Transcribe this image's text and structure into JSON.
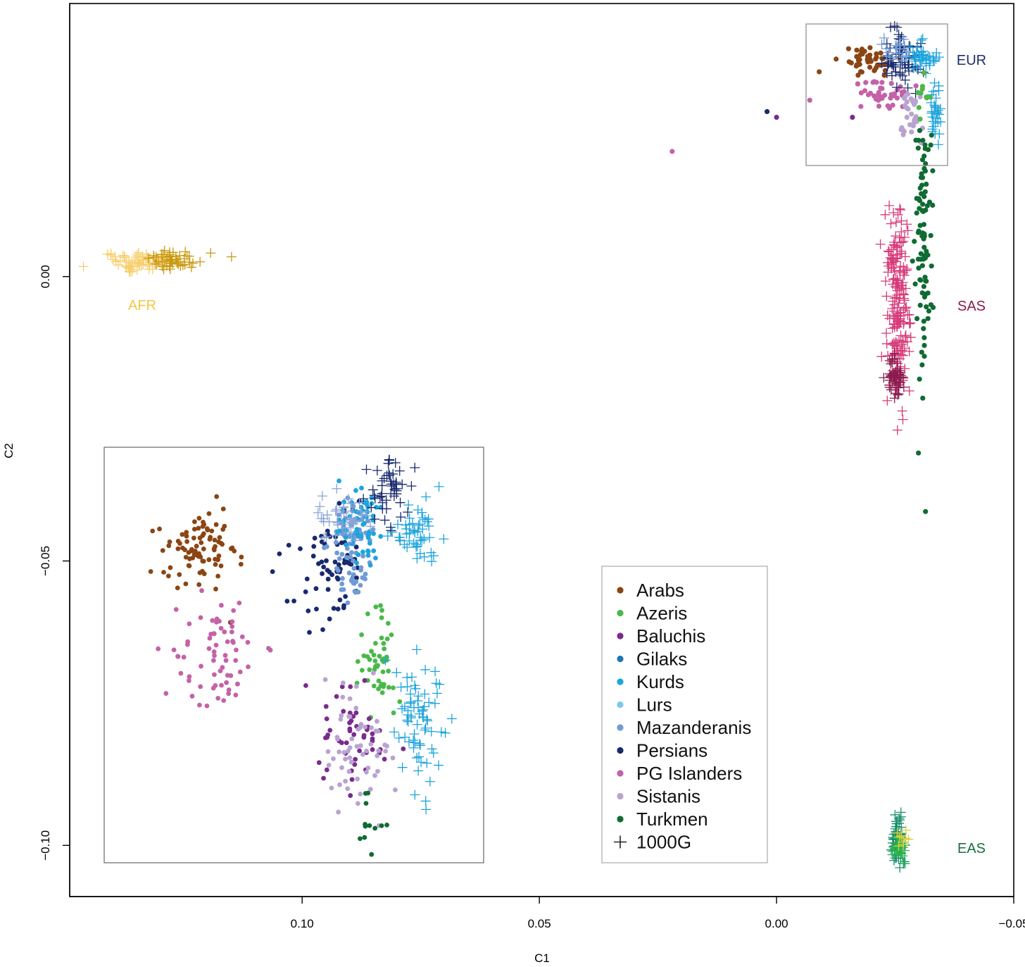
{
  "chart_data": {
    "type": "scatter",
    "title": "",
    "xlabel": "C1",
    "ylabel": "C2",
    "x_reversed": true,
    "xlim": [
      0.149,
      -0.05
    ],
    "ylim": [
      -0.109,
      0.048
    ],
    "x_ticks": [
      0.1,
      0.05,
      0.0,
      -0.05
    ],
    "x_tick_labels": [
      "0.10",
      "0.05",
      "0.00",
      "−0.05"
    ],
    "y_ticks": [
      0.0,
      -0.05,
      -0.1
    ],
    "y_tick_labels": [
      "0.00",
      "−0.05",
      "−0.10"
    ],
    "grid": false,
    "legend_position": "bottom-center",
    "region_labels": [
      {
        "text": "EUR",
        "color": "#1f2d6e"
      },
      {
        "text": "AFR",
        "color": "#f2c744"
      },
      {
        "text": "SAS",
        "color": "#8b1a4e"
      },
      {
        "text": "EAS",
        "color": "#1a6e3a"
      }
    ],
    "legend": [
      {
        "name": "Arabs",
        "color": "#8b4513",
        "marker": "dot"
      },
      {
        "name": "Azeris",
        "color": "#4bb849",
        "marker": "dot"
      },
      {
        "name": "Baluchis",
        "color": "#7b2a8e",
        "marker": "dot"
      },
      {
        "name": "Gilaks",
        "color": "#1f77b4",
        "marker": "dot"
      },
      {
        "name": "Kurds",
        "color": "#1ea4dc",
        "marker": "dot"
      },
      {
        "name": "Lurs",
        "color": "#7cc8f0",
        "marker": "dot"
      },
      {
        "name": "Mazanderanis",
        "color": "#6f9bd6",
        "marker": "dot"
      },
      {
        "name": "Persians",
        "color": "#18296e",
        "marker": "dot"
      },
      {
        "name": "PG Islanders",
        "color": "#c462a8",
        "marker": "dot"
      },
      {
        "name": "Sistanis",
        "color": "#b9a3d0",
        "marker": "dot"
      },
      {
        "name": "Turkmen",
        "color": "#0f6b32",
        "marker": "dot"
      },
      {
        "name": "1000G",
        "color": "#222222",
        "marker": "plus"
      }
    ],
    "clusters": [
      {
        "group": "AFR",
        "marker": "plus",
        "color": "#f7cf6e",
        "cx": 0.135,
        "cy": 0.0025,
        "sx": 0.004,
        "sy": 0.001,
        "n": 60
      },
      {
        "group": "AFR",
        "marker": "plus",
        "color": "#c9990f",
        "cx": 0.127,
        "cy": 0.003,
        "sx": 0.003,
        "sy": 0.001,
        "n": 50
      },
      {
        "group": "EUR",
        "marker": "dot",
        "color": "#8b4513",
        "cx": -0.0195,
        "cy": 0.038,
        "sx": 0.003,
        "sy": 0.0015,
        "n": 50
      },
      {
        "group": "EUR",
        "marker": "dot",
        "color": "#c462a8",
        "cx": -0.022,
        "cy": 0.032,
        "sx": 0.003,
        "sy": 0.0015,
        "n": 40
      },
      {
        "group": "EUR",
        "marker": "plus",
        "color": "#18296e",
        "cx": -0.0265,
        "cy": 0.038,
        "sx": 0.0018,
        "sy": 0.0025,
        "n": 60
      },
      {
        "group": "EUR",
        "marker": "plus",
        "color": "#1ea4dc",
        "cx": -0.0305,
        "cy": 0.0385,
        "sx": 0.0015,
        "sy": 0.0018,
        "n": 40
      },
      {
        "group": "EUR",
        "marker": "plus",
        "color": "#1ea4dc",
        "cx": -0.0335,
        "cy": 0.029,
        "sx": 0.0008,
        "sy": 0.0025,
        "n": 30
      },
      {
        "group": "EUR",
        "marker": "plus",
        "color": "#6f9bd6",
        "cx": -0.025,
        "cy": 0.04,
        "sx": 0.0012,
        "sy": 0.001,
        "n": 20
      },
      {
        "group": "EUR",
        "marker": "dot",
        "color": "#b9a3d0",
        "cx": -0.0285,
        "cy": 0.028,
        "sx": 0.0012,
        "sy": 0.0025,
        "n": 30
      },
      {
        "group": "EUR",
        "marker": "dot",
        "color": "#4bb849",
        "cx": -0.031,
        "cy": 0.032,
        "sx": 0.0008,
        "sy": 0.0015,
        "n": 10
      },
      {
        "group": "SAS",
        "marker": "plus",
        "color": "#d63b7a",
        "cx": -0.0255,
        "cy": -0.005,
        "sx": 0.0012,
        "sy": 0.008,
        "n": 180
      },
      {
        "group": "SAS",
        "marker": "plus",
        "color": "#8b1a4e",
        "cx": -0.025,
        "cy": -0.0175,
        "sx": 0.0008,
        "sy": 0.002,
        "n": 50
      },
      {
        "group": "SAS",
        "marker": "dot",
        "color": "#0f6b32",
        "cx": -0.031,
        "cy": 0.005,
        "sx": 0.0008,
        "sy": 0.012,
        "n": 90
      },
      {
        "group": "EAS",
        "marker": "plus",
        "color": "#1a8f6e",
        "cx": -0.0255,
        "cy": -0.099,
        "sx": 0.0007,
        "sy": 0.002,
        "n": 70
      },
      {
        "group": "EAS",
        "marker": "plus",
        "color": "#2ab24a",
        "cx": -0.026,
        "cy": -0.101,
        "sx": 0.0007,
        "sy": 0.001,
        "n": 25
      },
      {
        "group": "EAS",
        "marker": "plus",
        "color": "#d8d040",
        "cx": -0.0265,
        "cy": -0.0985,
        "sx": 0.0006,
        "sy": 0.001,
        "n": 10
      }
    ],
    "outliers": [
      {
        "x": -0.009,
        "y": 0.036,
        "color": "#8b4513"
      },
      {
        "x": 0.022,
        "y": 0.022,
        "color": "#c462a8"
      },
      {
        "x": 0.002,
        "y": 0.029,
        "color": "#18296e"
      },
      {
        "x": 0.0,
        "y": 0.028,
        "color": "#7b2a8e"
      },
      {
        "x": -0.007,
        "y": 0.031,
        "color": "#c462a8"
      },
      {
        "x": -0.016,
        "y": 0.028,
        "color": "#7b2a8e"
      }
    ],
    "inset": {
      "clusters": [
        {
          "marker": "dot",
          "color": "#8b4513",
          "cx": 0.25,
          "cy": 0.25,
          "sx": 0.05,
          "sy": 0.05,
          "n": 90
        },
        {
          "marker": "dot",
          "color": "#c462a8",
          "cx": 0.3,
          "cy": 0.5,
          "sx": 0.06,
          "sy": 0.07,
          "n": 70
        },
        {
          "marker": "dot",
          "color": "#18296e",
          "cx": 0.6,
          "cy": 0.28,
          "sx": 0.05,
          "sy": 0.08,
          "n": 70
        },
        {
          "marker": "dot",
          "color": "#6f9bd6",
          "cx": 0.66,
          "cy": 0.25,
          "sx": 0.03,
          "sy": 0.06,
          "n": 70
        },
        {
          "marker": "dot",
          "color": "#1ea4dc",
          "cx": 0.68,
          "cy": 0.2,
          "sx": 0.03,
          "sy": 0.05,
          "n": 60
        },
        {
          "marker": "dot",
          "color": "#4bb849",
          "cx": 0.72,
          "cy": 0.52,
          "sx": 0.03,
          "sy": 0.06,
          "n": 50
        },
        {
          "marker": "dot",
          "color": "#7b2a8e",
          "cx": 0.66,
          "cy": 0.7,
          "sx": 0.04,
          "sy": 0.06,
          "n": 50
        },
        {
          "marker": "dot",
          "color": "#b9a3d0",
          "cx": 0.67,
          "cy": 0.73,
          "sx": 0.05,
          "sy": 0.07,
          "n": 60
        },
        {
          "marker": "dot",
          "color": "#0f6b32",
          "cx": 0.7,
          "cy": 0.91,
          "sx": 0.02,
          "sy": 0.05,
          "n": 12
        },
        {
          "marker": "plus",
          "color": "#18296e",
          "cx": 0.75,
          "cy": 0.1,
          "sx": 0.03,
          "sy": 0.04,
          "n": 50
        },
        {
          "marker": "plus",
          "color": "#8aa4d6",
          "cx": 0.63,
          "cy": 0.17,
          "sx": 0.04,
          "sy": 0.03,
          "n": 45
        },
        {
          "marker": "plus",
          "color": "#1ea4dc",
          "cx": 0.82,
          "cy": 0.21,
          "sx": 0.03,
          "sy": 0.04,
          "n": 50
        },
        {
          "marker": "plus",
          "color": "#1ea4dc",
          "cx": 0.83,
          "cy": 0.66,
          "sx": 0.03,
          "sy": 0.08,
          "n": 70
        }
      ]
    }
  }
}
